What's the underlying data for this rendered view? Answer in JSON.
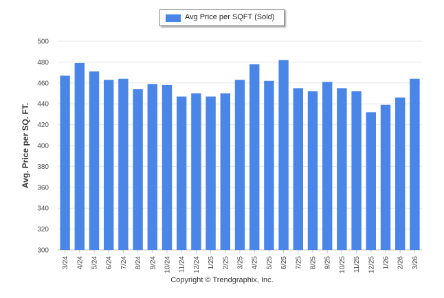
{
  "chart_data": {
    "type": "bar",
    "title": "",
    "legend": "Avg Price per SQFT (Sold)",
    "legend_position": "top-center",
    "xlabel": "",
    "ylabel": "Avg. Price per SQ. FT.",
    "ylim": [
      300,
      500
    ],
    "yticks": [
      300,
      320,
      340,
      360,
      380,
      400,
      420,
      440,
      460,
      480,
      500
    ],
    "grid": true,
    "color": "#4a86e8",
    "categories": [
      "3/24",
      "4/24",
      "5/24",
      "6/24",
      "7/24",
      "8/24",
      "9/24",
      "10/24",
      "11/24",
      "12/24",
      "1/25",
      "2/25",
      "3/25",
      "4/25",
      "5/25",
      "6/25",
      "7/25",
      "8/25",
      "9/25",
      "10/25",
      "11/25",
      "12/25",
      "1/26",
      "2/26",
      "3/26"
    ],
    "series": [
      {
        "name": "Avg Price per SQFT (Sold)",
        "values": [
          467,
          479,
          471,
          463,
          464,
          454,
          459,
          458,
          447,
          450,
          447,
          450,
          463,
          478,
          462,
          482,
          455,
          452,
          461,
          455,
          452,
          432,
          439,
          446,
          464
        ]
      }
    ]
  },
  "footer": {
    "copyright": "Copyright © Trendgraphix, Inc."
  }
}
